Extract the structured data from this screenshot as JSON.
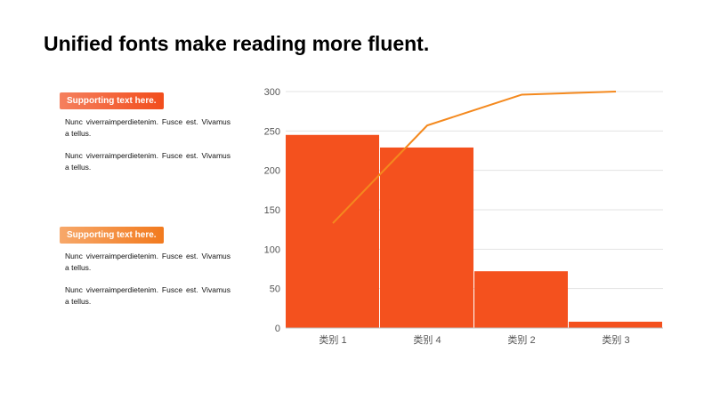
{
  "title": "Unified fonts make reading more fluent.",
  "blocks": [
    {
      "badge": "Supporting  text here.",
      "paragraphs": [
        "Nunc viverraimperdietenim. Fusce est. Vivamus a tellus.",
        "Nunc viverraimperdietenim. Fusce est. Vivamus a tellus."
      ]
    },
    {
      "badge": "Supporting  text here.",
      "paragraphs": [
        "Nunc viverraimperdietenim. Fusce est. Vivamus a tellus.",
        "Nunc viverraimperdietenim. Fusce est. Vivamus a tellus."
      ]
    }
  ],
  "colors": {
    "bar": "#f4511e",
    "line": "#f4891e",
    "grid": "#e3e3e3",
    "axis": "#bfbfbf"
  },
  "chart_data": {
    "type": "bar",
    "categories": [
      "类别 1",
      "类别 4",
      "类别 2",
      "类别 3"
    ],
    "series": [
      {
        "type": "bar",
        "values": [
          245,
          229,
          72,
          8
        ]
      },
      {
        "type": "line",
        "values": [
          133,
          257,
          296,
          300
        ]
      }
    ],
    "ylim": [
      0,
      300
    ],
    "yticks": [
      0,
      50,
      100,
      150,
      200,
      250,
      300
    ],
    "grid": true,
    "legend": "none"
  }
}
